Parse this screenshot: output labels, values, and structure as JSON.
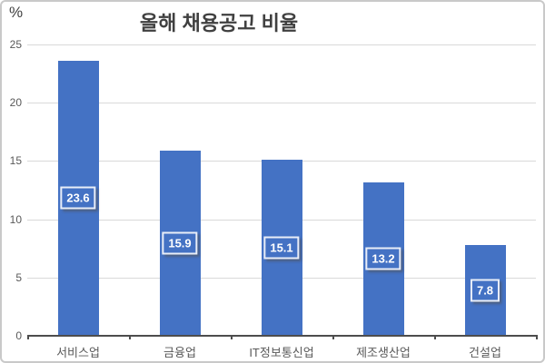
{
  "chart_data": {
    "type": "bar",
    "title": "올해 채용공고 비율",
    "ylabel": "%",
    "xlabel": "",
    "categories": [
      "서비스업",
      "금융업",
      "IT정보통신업",
      "제조생산업",
      "건설업"
    ],
    "values": [
      23.6,
      15.9,
      15.1,
      13.2,
      7.8
    ],
    "data_labels": [
      "23.6",
      "15.9",
      "15.1",
      "13.2",
      "7.8"
    ],
    "ylim": [
      0,
      25
    ],
    "yticks": [
      0,
      5,
      10,
      15,
      20,
      25
    ],
    "grid": true,
    "legend_position": "none",
    "colors": {
      "bar": "#4472C4",
      "data_label_fill": "#4472C4",
      "data_label_border": "#E9EEF8",
      "data_label_text": "#FFFFFF",
      "gridline": "#D9D9D9",
      "axis": "#4D4D4D",
      "title_text": "#404040",
      "tick_text": "#595959"
    }
  }
}
